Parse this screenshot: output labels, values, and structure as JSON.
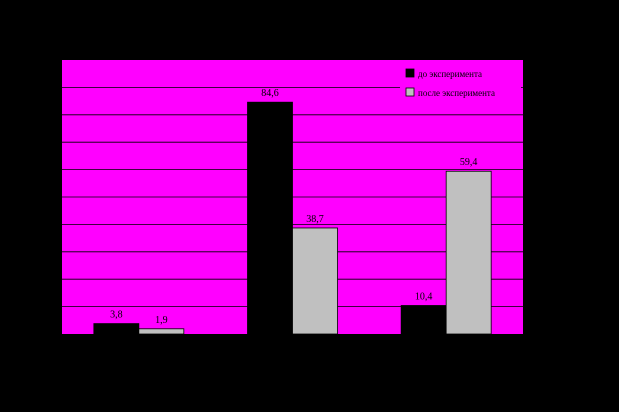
{
  "chart_data": {
    "type": "bar",
    "categories": [
      "",
      "",
      ""
    ],
    "series": [
      {
        "name": "до эксперимента",
        "values": [
          3.8,
          84.6,
          10.4
        ],
        "labels": [
          "3,8",
          "84,6",
          "10,4"
        ],
        "color": "#000000"
      },
      {
        "name": "после эксперимента",
        "values": [
          1.9,
          38.7,
          59.4
        ],
        "labels": [
          "1,9",
          "38,7",
          "59,4"
        ],
        "color": "#c0c0c0"
      }
    ],
    "ylim": [
      0,
      100
    ],
    "grid": true,
    "legend_position": "top-right",
    "colors": {
      "background": "#000000",
      "plot_area": "#ff00ff",
      "grid": "#000000"
    }
  }
}
